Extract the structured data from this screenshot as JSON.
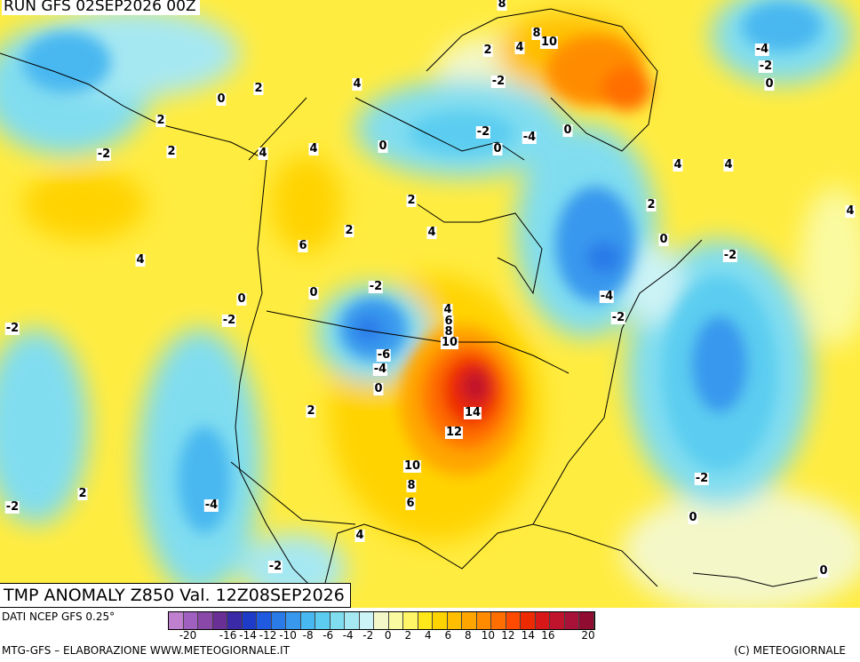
{
  "header": {
    "run_label": "RUN GFS 02SEP2026 00Z"
  },
  "map": {
    "title": "TMP ANOMALY Z850 Val. 12Z08SEP2026",
    "contour_labels": [
      "8",
      "2",
      "4",
      "8",
      "10",
      "2",
      "-4",
      "-2",
      "0",
      "0",
      "2",
      "4",
      "-2",
      "0",
      "-2",
      "2",
      "4",
      "-2",
      "0",
      "-4",
      "0",
      "4",
      "4",
      "4",
      "2",
      "2",
      "4",
      "6",
      "2",
      "4",
      "0",
      "-2",
      "4",
      "-4",
      "-2",
      "-2",
      "0",
      "-6",
      "-4",
      "0",
      "2",
      "4",
      "6",
      "8",
      "10",
      "14",
      "12",
      "10",
      "8",
      "6",
      "-2",
      "-2",
      "2",
      "-4",
      "-2",
      "4",
      "-2",
      "0",
      "0",
      "0",
      "-2"
    ]
  },
  "colorbar": {
    "colors": [
      "#c080d0",
      "#a060c0",
      "#8a48a8",
      "#6a2f94",
      "#3a2aa8",
      "#1e3cc8",
      "#1f5ae0",
      "#2a7ae8",
      "#3898ee",
      "#48b8f0",
      "#5ccdf0",
      "#80ddf0",
      "#a6e8f2",
      "#ccf3f5",
      "#f4f8c8",
      "#fafaa0",
      "#fff566",
      "#ffe81a",
      "#ffd300",
      "#ffbf00",
      "#ffa500",
      "#ff8c00",
      "#ff6e00",
      "#ff4a00",
      "#ee2a00",
      "#d81818",
      "#c0142c",
      "#a81238",
      "#900c30"
    ],
    "ticks": [
      "-20",
      "-16",
      "-14",
      "-12",
      "-10",
      "-8",
      "-6",
      "-4",
      "-2",
      "0",
      "2",
      "4",
      "6",
      "8",
      "10",
      "12",
      "14",
      "16",
      "20"
    ]
  },
  "footer": {
    "source": "DATI NCEP GFS 0.25°",
    "credit": "MTG-GFS – ELABORAZIONE WWW.METEOGIORNALE.IT",
    "copyright": "(C) METEOGIORNALE"
  }
}
